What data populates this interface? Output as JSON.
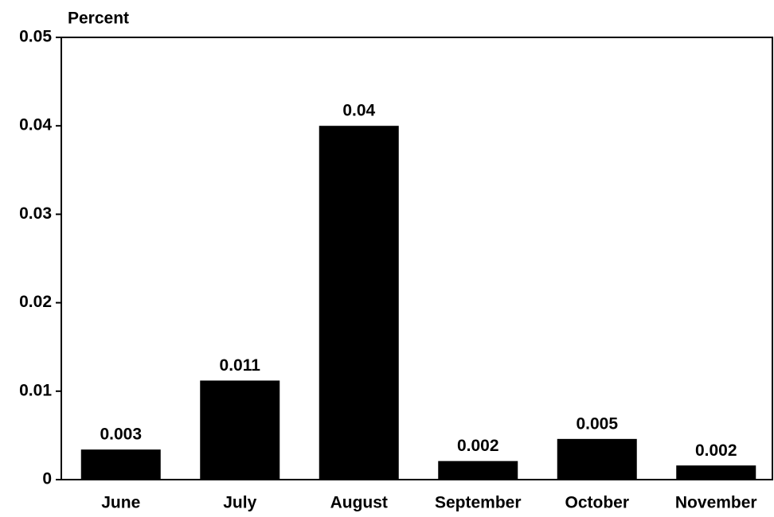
{
  "chart_data": {
    "type": "bar",
    "y_label": "Percent",
    "categories": [
      "June",
      "July",
      "August",
      "September",
      "October",
      "November"
    ],
    "values": [
      0.0034,
      0.0112,
      0.04,
      0.0021,
      0.0046,
      0.0016
    ],
    "value_labels": [
      "0.003",
      "0.011",
      "0.04",
      "0.002",
      "0.005",
      "0.002"
    ],
    "color": "#000000",
    "ylim": [
      0,
      0.05
    ],
    "yticks": [
      0,
      0.01,
      0.02,
      0.03,
      0.04,
      0.05
    ],
    "grid": false
  }
}
